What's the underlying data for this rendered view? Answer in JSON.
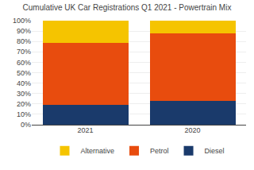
{
  "chart_data": {
    "type": "bar",
    "stacked": true,
    "title": "Cumulative UK Car Registrations Q1 2021 - Powertrain Mix",
    "categories": [
      "2021",
      "2020"
    ],
    "series": [
      {
        "name": "Diesel",
        "color": "#1a3a6b",
        "values": [
          19,
          23
        ]
      },
      {
        "name": "Petrol",
        "color": "#e84c0e",
        "values": [
          60,
          65
        ]
      },
      {
        "name": "Alternative",
        "color": "#f5c400",
        "values": [
          21,
          12
        ]
      }
    ],
    "ylim": [
      0,
      100
    ],
    "yticks": [
      {
        "value": 0,
        "label": "0%"
      },
      {
        "value": 10,
        "label": "10%"
      },
      {
        "value": 20,
        "label": "20%"
      },
      {
        "value": 30,
        "label": "30%"
      },
      {
        "value": 40,
        "label": "40%"
      },
      {
        "value": 50,
        "label": "50%"
      },
      {
        "value": 60,
        "label": "60%"
      },
      {
        "value": 70,
        "label": "70%"
      },
      {
        "value": 80,
        "label": "80%"
      },
      {
        "value": 90,
        "label": "90%"
      },
      {
        "value": 100,
        "label": "100%"
      }
    ],
    "grid": true,
    "legend": "bottom"
  }
}
